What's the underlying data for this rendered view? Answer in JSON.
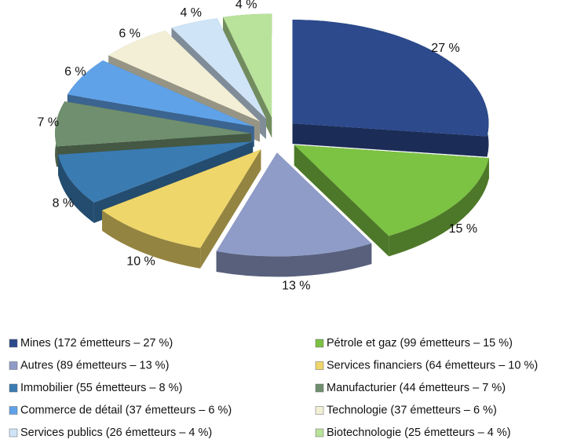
{
  "chart_data": {
    "type": "pie",
    "categories": [
      "Mines (172 émetteurs – 27 %)",
      "Pétrole et gaz (99 émetteurs – 15 %)",
      "Autres (89 émetteurs – 13 %)",
      "Services financiers (64 émetteurs – 10 %)",
      "Immobilier (55 émetteurs – 8 %)",
      "Manufacturier (44 émetteurs – 7 %)",
      "Commerce de détail (37 émetteurs – 6 %)",
      "Technologie (37 émetteurs – 6 %)",
      "Services publics (26 émetteurs – 4 %)",
      "Biotechnologie (25 émetteurs – 4 %)"
    ],
    "values": [
      27,
      15,
      13,
      10,
      8,
      7,
      6,
      6,
      4,
      4
    ],
    "value_labels": [
      "27 %",
      "15 %",
      "13 %",
      "10 %",
      "8 %",
      "7 %",
      "6 %",
      "6 %",
      "4 %",
      "4 %"
    ],
    "colors": [
      "#2c4a8c",
      "#7cc243",
      "#8f9cc8",
      "#efd66a",
      "#3a7bb2",
      "#6f8f6e",
      "#5fa2e8",
      "#f3efd6",
      "#cfe4f7",
      "#b9e29a"
    ]
  }
}
